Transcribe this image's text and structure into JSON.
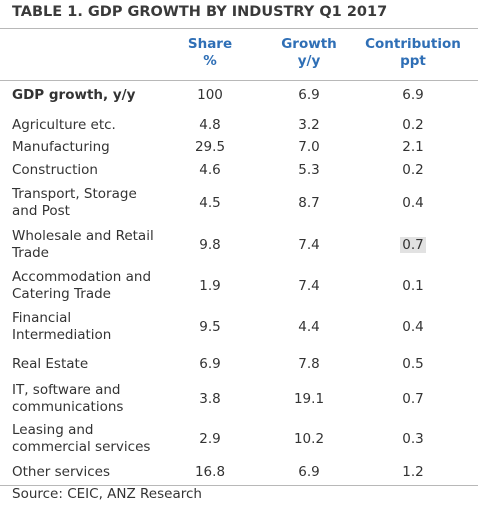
{
  "title": "TABLE 1. GDP GROWTH BY INDUSTRY Q1 2017",
  "header": [
    [
      "Share",
      "%"
    ],
    [
      "Growth",
      "y/y"
    ],
    [
      "Contribution",
      "ppt"
    ]
  ],
  "rows": [
    {
      "label": [
        "GDP growth, y/y"
      ],
      "cells": [
        "100",
        "6.9",
        "6.9"
      ]
    },
    {
      "label": [
        "Agriculture etc."
      ],
      "cells": [
        "4.8",
        "3.2",
        "0.2"
      ]
    },
    {
      "label": [
        "Manufacturing"
      ],
      "cells": [
        "29.5",
        "7.0",
        "2.1"
      ]
    },
    {
      "label": [
        "Construction"
      ],
      "cells": [
        "4.6",
        "5.3",
        "0.2"
      ]
    },
    {
      "label": [
        "Transport, Storage",
        "and Post"
      ],
      "cells": [
        "4.5",
        "8.7",
        "0.4"
      ]
    },
    {
      "label": [
        "Wholesale and Retail",
        "Trade"
      ],
      "cells": [
        "9.8",
        "7.4",
        "0.7"
      ]
    },
    {
      "label": [
        "Accommodation and",
        "Catering Trade"
      ],
      "cells": [
        "1.9",
        "7.4",
        "0.1"
      ]
    },
    {
      "label": [
        "Financial",
        "Intermediation"
      ],
      "cells": [
        "9.5",
        "4.4",
        "0.4"
      ]
    },
    {
      "label": [
        "Real Estate"
      ],
      "cells": [
        "6.9",
        "7.8",
        "0.5"
      ]
    },
    {
      "label": [
        "IT, software and",
        "communications"
      ],
      "cells": [
        "3.8",
        "19.1",
        "0.7"
      ]
    },
    {
      "label": [
        "Leasing and",
        "commercial services"
      ],
      "cells": [
        "2.9",
        "10.2",
        "0.3"
      ]
    },
    {
      "label": [
        "Other services"
      ],
      "cells": [
        "16.8",
        "6.9",
        "1.2"
      ]
    }
  ],
  "source": "Source: CEIC, ANZ Research"
}
